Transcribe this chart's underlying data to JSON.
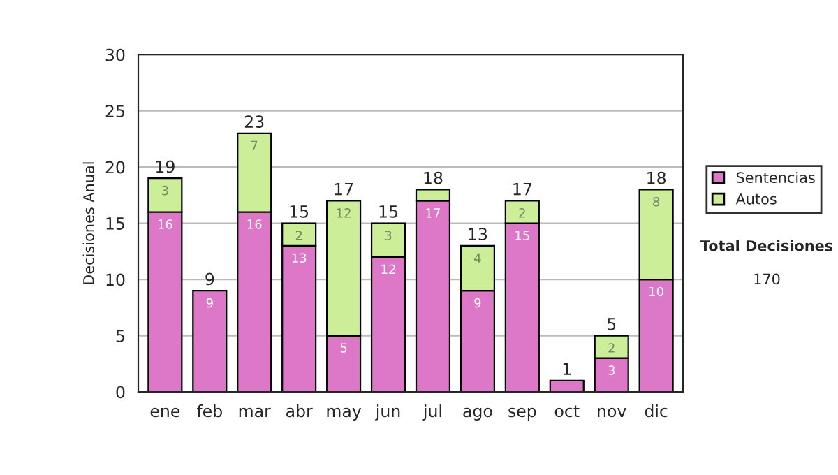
{
  "chart_data": {
    "type": "bar",
    "stacked": true,
    "ylabel": "Decisiones Anual",
    "categories": [
      "ene",
      "feb",
      "mar",
      "abr",
      "may",
      "jun",
      "jul",
      "ago",
      "sep",
      "oct",
      "nov",
      "dic"
    ],
    "series": [
      {
        "name": "Sentencias",
        "color": "#dd77c8",
        "values": [
          16,
          9,
          16,
          13,
          5,
          12,
          17,
          9,
          15,
          1,
          3,
          10
        ],
        "value_labels": [
          "16",
          "9",
          "16",
          "13",
          "5",
          "12",
          "17",
          "9",
          "15",
          null,
          "3",
          "10"
        ]
      },
      {
        "name": "Autos",
        "color": "#ccee99",
        "values": [
          3,
          null,
          7,
          2,
          12,
          3,
          1,
          4,
          2,
          null,
          2,
          8
        ],
        "value_labels": [
          "3",
          null,
          "7",
          "2",
          "12",
          "3",
          null,
          "4",
          "2",
          null,
          "2",
          "8"
        ]
      }
    ],
    "totals": [
      "19",
      "9",
      "23",
      "15",
      "17",
      "15",
      "18",
      "13",
      "17",
      "1",
      "5",
      "18"
    ],
    "ylim": [
      0,
      30
    ],
    "yticks": [
      0,
      5,
      10,
      15,
      20,
      25,
      30
    ],
    "grid": "y",
    "legend": "right",
    "annotations": [
      "Total Decisiones",
      "170"
    ]
  }
}
